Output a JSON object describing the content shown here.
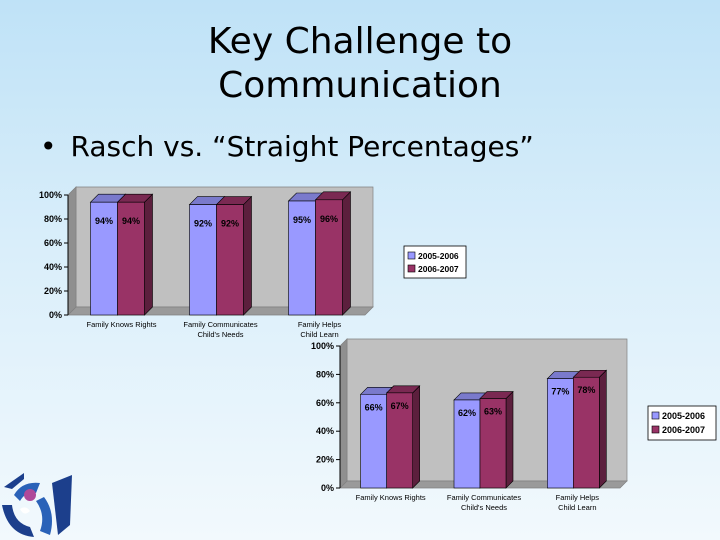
{
  "slide": {
    "title_line1": "Key Challenge to",
    "title_line2": "Communication",
    "bullet": "Rasch vs. “Straight Percentages”"
  },
  "colors": {
    "series_2005": "#9999ff",
    "series_2006": "#993366",
    "plot_wall": "#c0c0c0"
  },
  "chart_data": [
    {
      "type": "bar",
      "categories": [
        "Family Knows Rights",
        "Family Communicates Child's Needs",
        "Family Helps Child Learn"
      ],
      "series": [
        {
          "name": "2005-2006",
          "values": [
            94,
            92,
            95
          ]
        },
        {
          "name": "2006-2007",
          "values": [
            94,
            92,
            96
          ]
        }
      ],
      "data_labels": [
        [
          "94%",
          "92%",
          "95%"
        ],
        [
          "94%",
          "92%",
          "96%"
        ]
      ],
      "y_ticks": [
        "0%",
        "20%",
        "40%",
        "60%",
        "80%",
        "100%"
      ],
      "ylim": [
        0,
        100
      ],
      "legend": "right",
      "grid": false
    },
    {
      "type": "bar",
      "categories": [
        "Family Knows Rights",
        "Family Communicates Child's Needs",
        "Family Helps Child Learn"
      ],
      "series": [
        {
          "name": "2005-2006",
          "values": [
            66,
            62,
            77
          ]
        },
        {
          "name": "2006-2007",
          "values": [
            67,
            63,
            78
          ]
        }
      ],
      "data_labels": [
        [
          "66%",
          "62%",
          "77%"
        ],
        [
          "67%",
          "63%",
          "78%"
        ]
      ],
      "y_ticks": [
        "0%",
        "20%",
        "40%",
        "60%",
        "80%",
        "100%"
      ],
      "ylim": [
        0,
        100
      ],
      "legend": "right",
      "grid": false
    }
  ]
}
